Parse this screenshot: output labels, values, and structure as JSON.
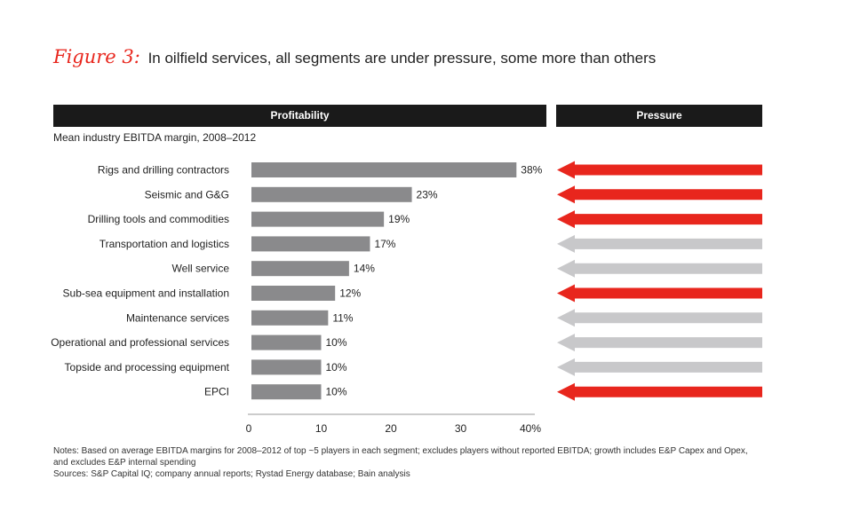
{
  "header": {
    "figure_label": "Figure 3:",
    "title": "In oilfield services, all segments are under pressure, some more than others"
  },
  "panels": {
    "left_title": "Profitability",
    "right_title": "Pressure",
    "subtitle": "Mean industry EBITDA margin, 2008–2012"
  },
  "colors": {
    "bar": "#8a8a8c",
    "high_pressure": "#e8261d",
    "low_pressure": "#c8c8ca",
    "header_bg": "#1a1a1a"
  },
  "chart_data": {
    "type": "bar",
    "orientation": "horizontal",
    "categories": [
      "Rigs and drilling contractors",
      "Seismic and G&G",
      "Drilling tools and commodities",
      "Transportation and logistics",
      "Well service",
      "Sub-sea equipment and installation",
      "Maintenance services",
      "Operational and professional services",
      "Topside and processing equipment",
      "EPCI"
    ],
    "values": [
      38,
      23,
      19,
      17,
      14,
      12,
      11,
      10,
      10,
      10
    ],
    "value_labels": [
      "38%",
      "23%",
      "19%",
      "17%",
      "14%",
      "12%",
      "11%",
      "10%",
      "10%",
      "10%"
    ],
    "pressure": [
      "high",
      "high",
      "high",
      "low",
      "low",
      "high",
      "low",
      "low",
      "low",
      "high"
    ],
    "xlim": [
      0,
      40
    ],
    "xticks": [
      0,
      10,
      20,
      30,
      40
    ],
    "xtick_labels": [
      "0",
      "10",
      "20",
      "30",
      "40%"
    ],
    "grid": false
  },
  "footer": {
    "notes": "Notes: Based on average EBITDA margins for 2008–2012 of top ~5 players in each segment; excludes players without reported EBITDA; growth includes E&P Capex and Opex, and excludes E&P internal spending",
    "sources": "Sources: S&P Capital IQ; company annual reports; Rystad Energy database; Bain analysis"
  }
}
